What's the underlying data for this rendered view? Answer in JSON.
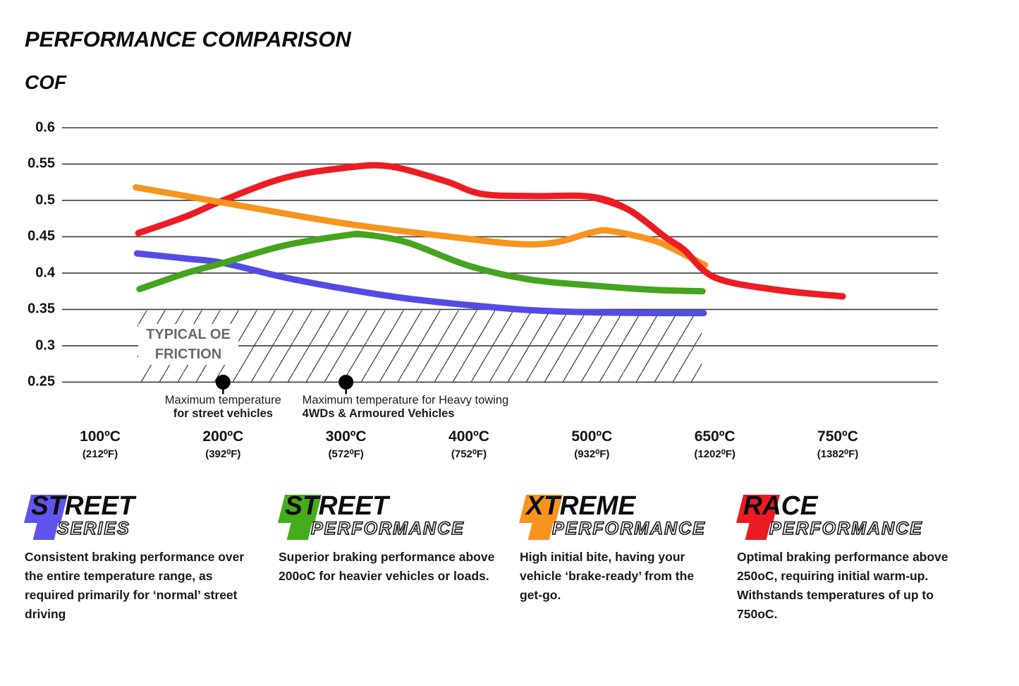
{
  "title": "PERFORMANCE COMPARISON",
  "y_axis_title": "COF",
  "chart_data": {
    "type": "line",
    "title": "PERFORMANCE COMPARISON",
    "ylabel": "COF",
    "ylim": [
      0.25,
      0.6
    ],
    "grid": true,
    "y_ticks": [
      "0.6",
      "0.55",
      "0.5",
      "0.45",
      "0.4",
      "0.35",
      "0.3",
      "0.25"
    ],
    "y_tick_values": [
      0.6,
      0.55,
      0.5,
      0.45,
      0.4,
      0.35,
      0.3,
      0.25
    ],
    "x_ticks": [
      {
        "celsius": "100ºC",
        "fahrenheit": "(212⁰F)"
      },
      {
        "celsius": "200ºC",
        "fahrenheit": "(392⁰F)"
      },
      {
        "celsius": "300ºC",
        "fahrenheit": "(572⁰F)"
      },
      {
        "celsius": "400ºC",
        "fahrenheit": "(752⁰F)"
      },
      {
        "celsius": "500ºC",
        "fahrenheit": "(932⁰F)"
      },
      {
        "celsius": "650ºC",
        "fahrenheit": "(1202⁰F)"
      },
      {
        "celsius": "750ºC",
        "fahrenheit": "(1382⁰F)"
      }
    ],
    "series": [
      {
        "name": "Street Series",
        "color": "#544BE5",
        "points": [
          [
            0.3,
            0.427
          ],
          [
            0.7,
            0.42
          ],
          [
            1.0,
            0.414
          ],
          [
            1.5,
            0.394
          ],
          [
            2.0,
            0.378
          ],
          [
            2.5,
            0.365
          ],
          [
            3.0,
            0.356
          ],
          [
            3.5,
            0.349
          ],
          [
            4.0,
            0.346
          ],
          [
            4.5,
            0.345
          ],
          [
            4.91,
            0.345
          ]
        ]
      },
      {
        "name": "Street Performance",
        "color": "#45A41F",
        "points": [
          [
            0.32,
            0.378
          ],
          [
            0.7,
            0.4
          ],
          [
            1.0,
            0.414
          ],
          [
            1.5,
            0.438
          ],
          [
            2.0,
            0.452
          ],
          [
            2.15,
            0.453
          ],
          [
            2.5,
            0.442
          ],
          [
            3.0,
            0.41
          ],
          [
            3.5,
            0.391
          ],
          [
            4.0,
            0.383
          ],
          [
            4.5,
            0.377
          ],
          [
            4.9,
            0.375
          ]
        ]
      },
      {
        "name": "Xtreme Performance",
        "color": "#F7941D",
        "points": [
          [
            0.29,
            0.518
          ],
          [
            1.0,
            0.497
          ],
          [
            2.0,
            0.468
          ],
          [
            3.0,
            0.447
          ],
          [
            3.4,
            0.44
          ],
          [
            3.7,
            0.442
          ],
          [
            4.0,
            0.456
          ],
          [
            4.15,
            0.458
          ],
          [
            4.5,
            0.445
          ],
          [
            4.7,
            0.43
          ],
          [
            4.92,
            0.411
          ]
        ]
      },
      {
        "name": "Race Performance",
        "color": "#ED1C23",
        "points": [
          [
            0.31,
            0.455
          ],
          [
            0.7,
            0.478
          ],
          [
            1.0,
            0.5
          ],
          [
            1.5,
            0.531
          ],
          [
            2.0,
            0.545
          ],
          [
            2.35,
            0.547
          ],
          [
            2.8,
            0.527
          ],
          [
            3.1,
            0.509
          ],
          [
            3.5,
            0.506
          ],
          [
            4.0,
            0.505
          ],
          [
            4.3,
            0.487
          ],
          [
            4.6,
            0.449
          ],
          [
            4.75,
            0.432
          ],
          [
            5.0,
            0.394
          ],
          [
            5.5,
            0.377
          ],
          [
            6.04,
            0.368
          ]
        ]
      }
    ],
    "oe_friction_band": {
      "label_line1": "TYPICAL OE",
      "label_line2": "FRICTION",
      "cof_range": [
        0.25,
        0.35
      ]
    },
    "annotations": [
      {
        "at_tick": 1,
        "align": "center",
        "line1": "Maximum temperature",
        "line2": "for street vehicles"
      },
      {
        "at_tick": 2,
        "align": "left",
        "line1": "Maximum temperature for Heavy towing",
        "line2": "4WDs & Armoured Vehicles"
      }
    ]
  },
  "legend": [
    {
      "word1": "STREET",
      "word2": "SERIES",
      "color": "#5F54EE",
      "description": "Consistent braking performance over the entire temperature range, as required primarily for ‘normal’ street driving"
    },
    {
      "word1": "STREET",
      "word2": "PERFORMANCE",
      "color": "#43AD1A",
      "description": "Superior braking performance above 200oC for heavier vehicles or loads."
    },
    {
      "word1": "XTREME",
      "word2": "PERFORMANCE",
      "color": "#F7941E",
      "description": "High initial bite, having your vehicle ‘brake-ready’ from the get-go."
    },
    {
      "word1": "RACE",
      "word2": "PERFORMANCE",
      "color": "#EA1C21",
      "description": "Optimal braking performance above 250oC, requiring initial warm-up. Withstands temperatures of up to 750oC."
    }
  ]
}
